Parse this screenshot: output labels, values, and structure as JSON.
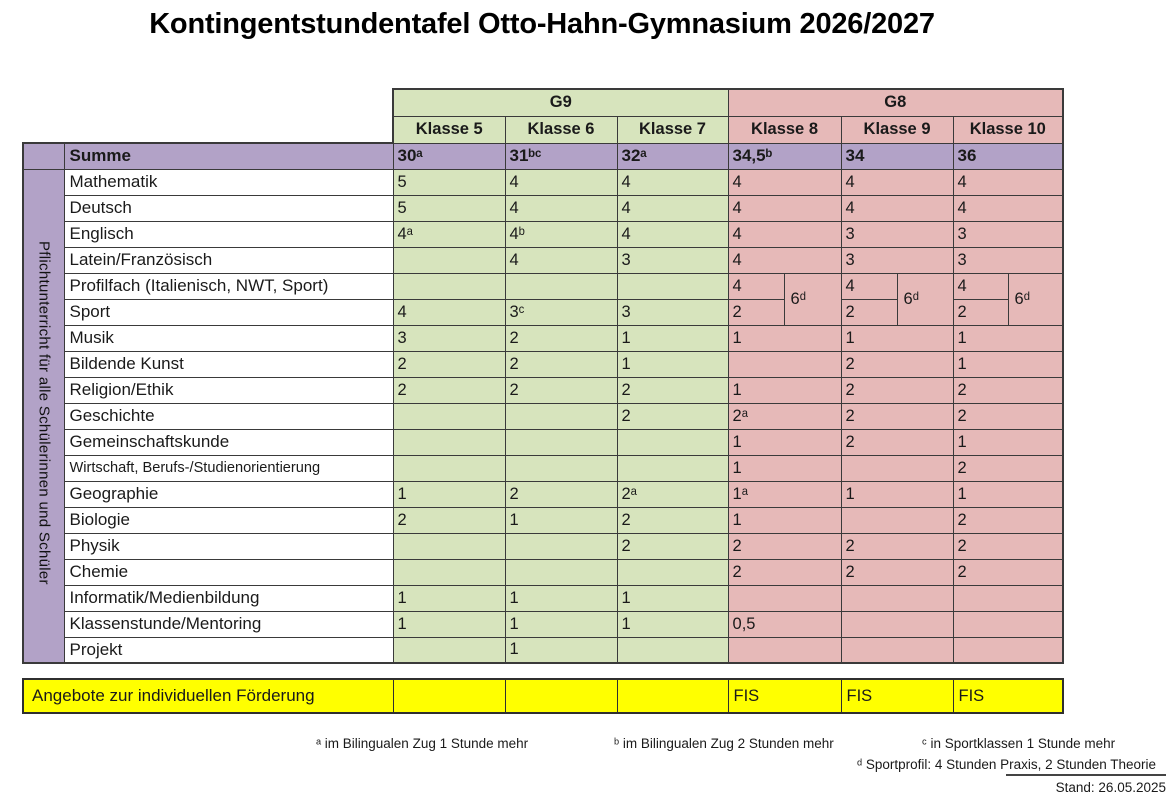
{
  "title": "Kontingentstundentafel Otto-Hahn-Gymnasium 2026/2027",
  "colors": {
    "g9_green": "#d7e4bd",
    "g8_pink": "#e6b9b8",
    "summe_purple": "#b2a2c7",
    "foerderung_yellow": "#ffff00"
  },
  "table": {
    "group_headers": [
      "G9",
      "G8"
    ],
    "class_headers": [
      "Klasse 5",
      "Klasse 6",
      "Klasse 7",
      "Klasse 8",
      "Klasse 9",
      "Klasse 10"
    ],
    "summe_label": "Summe",
    "summe_values": [
      "30ᵃ",
      "31ᵇᶜ",
      "32ᵃ",
      "34,5ᵇ",
      "34",
      "36"
    ],
    "side_label": "Pflichtunterricht für alle Schülerinnen und Schüler",
    "profil_sport_combined": "6ᵈ",
    "rows": [
      {
        "label": "Mathematik",
        "cells": [
          "5",
          "4",
          "4",
          "4",
          "4",
          "4"
        ]
      },
      {
        "label": "Deutsch",
        "cells": [
          "5",
          "4",
          "4",
          "4",
          "4",
          "4"
        ]
      },
      {
        "label": "Englisch",
        "cells": [
          "4ᵃ",
          "4ᵇ",
          "4",
          "4",
          "3",
          "3"
        ]
      },
      {
        "label": "Latein/Französisch",
        "cells": [
          "",
          "4",
          "3",
          "4",
          "3",
          "3"
        ]
      },
      {
        "label": "Profilfach (Italienisch, NWT, Sport)",
        "cells": [
          "",
          "",
          "",
          "4",
          "4",
          "4"
        ],
        "split": "top"
      },
      {
        "label": "Sport",
        "cells": [
          "4",
          "3ᶜ",
          "3",
          "2",
          "2",
          "2"
        ],
        "split": "bottom"
      },
      {
        "label": "Musik",
        "cells": [
          "3",
          "2",
          "1",
          "1",
          "1",
          "1"
        ]
      },
      {
        "label": "Bildende Kunst",
        "cells": [
          "2",
          "2",
          "1",
          "",
          "2",
          "1"
        ]
      },
      {
        "label": "Religion/Ethik",
        "cells": [
          "2",
          "2",
          "2",
          "1",
          "2",
          "2"
        ]
      },
      {
        "label": "Geschichte",
        "cells": [
          "",
          "",
          "2",
          "2ᵃ",
          "2",
          "2"
        ]
      },
      {
        "label": "Gemeinschaftskunde",
        "cells": [
          "",
          "",
          "",
          "1",
          "2",
          "1"
        ]
      },
      {
        "label": "Wirtschaft, Berufs-/Studienorientierung",
        "cells": [
          "",
          "",
          "",
          "1",
          "",
          "2"
        ],
        "small": true
      },
      {
        "label": "Geographie",
        "cells": [
          "1",
          "2",
          "2ᵃ",
          "1ᵃ",
          "1",
          "1"
        ]
      },
      {
        "label": "Biologie",
        "cells": [
          "2",
          "1",
          "2",
          "1",
          "",
          "2"
        ]
      },
      {
        "label": "Physik",
        "cells": [
          "",
          "",
          "2",
          "2",
          "2",
          "2"
        ]
      },
      {
        "label": "Chemie",
        "cells": [
          "",
          "",
          "",
          "2",
          "2",
          "2"
        ]
      },
      {
        "label": "Informatik/Medienbildung",
        "cells": [
          "1",
          "1",
          "1",
          "",
          "",
          ""
        ]
      },
      {
        "label": "Klassenstunde/Mentoring",
        "cells": [
          "1",
          "1",
          "1",
          "0,5",
          "",
          ""
        ]
      },
      {
        "label": "Projekt",
        "cells": [
          "",
          "1",
          "",
          "",
          "",
          ""
        ]
      }
    ]
  },
  "foerderung": {
    "label": "Angebote zur individuellen Förderung",
    "values": [
      "",
      "",
      "",
      "FIS",
      "FIS",
      "FIS"
    ]
  },
  "footnotes": [
    "ᵃ im Bilingualen Zug 1 Stunde mehr",
    "ᵇ im Bilingualen Zug 2 Stunden mehr",
    "ᶜ in Sportklassen 1 Stunde mehr",
    "ᵈ Sportprofil: 4 Stunden Praxis, 2 Stunden Theorie"
  ],
  "stand": "Stand: 26.05.2025"
}
